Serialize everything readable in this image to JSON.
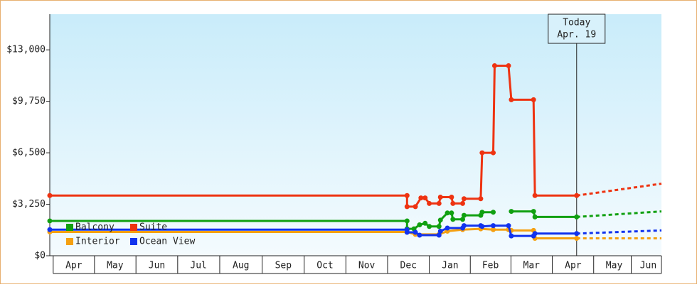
{
  "chart_data": {
    "type": "line",
    "xlim": [
      0,
      440
    ],
    "ylim": [
      0,
      15250
    ],
    "yticks": [
      {
        "value": 0,
        "label": "$0"
      },
      {
        "value": 3250,
        "label": "$3,250"
      },
      {
        "value": 6500,
        "label": "$6,500"
      },
      {
        "value": 9750,
        "label": "$9,750"
      },
      {
        "value": 13000,
        "label": "$13,000"
      }
    ],
    "xticks": [
      {
        "value": 17.3,
        "label": "Apr"
      },
      {
        "value": 47,
        "label": "May"
      },
      {
        "value": 77,
        "label": "Jun"
      },
      {
        "value": 107,
        "label": "Jul"
      },
      {
        "value": 137.5,
        "label": "Aug"
      },
      {
        "value": 168,
        "label": "Sep"
      },
      {
        "value": 198,
        "label": "Oct"
      },
      {
        "value": 228,
        "label": "Nov"
      },
      {
        "value": 258,
        "label": "Dec"
      },
      {
        "value": 288,
        "label": "Jan"
      },
      {
        "value": 317,
        "label": "Feb"
      },
      {
        "value": 346.5,
        "label": "Mar"
      },
      {
        "value": 376.5,
        "label": "Apr"
      },
      {
        "value": 406,
        "label": "May"
      },
      {
        "value": 430.5,
        "label": "Jun"
      }
    ],
    "annotation": {
      "x": 379,
      "lines": [
        "Today",
        "Apr. 19"
      ]
    },
    "series": [
      {
        "name": "Balcony",
        "color": "#11a011",
        "x": [
          0,
          257,
          257,
          262,
          266,
          270,
          273,
          280,
          281,
          286,
          289,
          290,
          297,
          298,
          310,
          311,
          319,
          null,
          332,
          348,
          349,
          379
        ],
        "values": [
          2200,
          2200,
          1700,
          1700,
          1950,
          2050,
          1850,
          1850,
          2250,
          2700,
          2700,
          2300,
          2300,
          2550,
          2550,
          2750,
          2750,
          null,
          2800,
          2800,
          2450,
          2450
        ],
        "forecast": {
          "x": [
            379,
            440
          ],
          "values": [
            2450,
            2800
          ]
        }
      },
      {
        "name": "Suite",
        "color": "#ee3311",
        "x": [
          0,
          257,
          257,
          263,
          267,
          270,
          273,
          280,
          281,
          289,
          290,
          297,
          298,
          310,
          311,
          319,
          320,
          330,
          332,
          348,
          349,
          379
        ],
        "values": [
          3800,
          3800,
          3100,
          3100,
          3650,
          3650,
          3300,
          3300,
          3700,
          3700,
          3300,
          3300,
          3600,
          3600,
          6500,
          6500,
          12000,
          12000,
          9850,
          9850,
          3800,
          3800
        ],
        "forecast": {
          "x": [
            379,
            440
          ],
          "values": [
            3800,
            4550
          ]
        }
      },
      {
        "name": "Interior",
        "color": "#f5a011",
        "x": [
          0,
          257,
          263,
          280,
          286,
          297,
          310,
          319,
          330,
          332,
          348,
          349,
          379
        ],
        "values": [
          1500,
          1500,
          1350,
          1350,
          1550,
          1650,
          1700,
          1650,
          1650,
          1600,
          1600,
          1100,
          1100
        ],
        "forecast": {
          "x": [
            379,
            440
          ],
          "values": [
            1100,
            1100
          ]
        }
      },
      {
        "name": "Ocean View",
        "color": "#1133ee",
        "x": [
          0,
          257,
          257,
          263,
          266,
          280,
          281,
          286,
          297,
          298,
          310,
          311,
          319,
          330,
          332,
          348,
          349,
          379
        ],
        "values": [
          1650,
          1650,
          1480,
          1480,
          1300,
          1300,
          1550,
          1750,
          1750,
          1900,
          1900,
          1850,
          1900,
          1900,
          1250,
          1250,
          1400,
          1400
        ],
        "forecast": {
          "x": [
            379,
            440
          ],
          "values": [
            1400,
            1600
          ]
        }
      }
    ]
  }
}
